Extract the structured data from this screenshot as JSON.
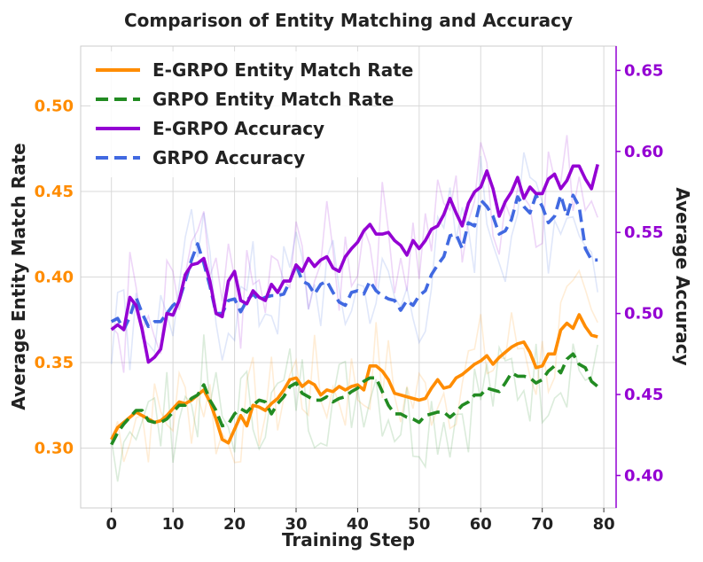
{
  "chart_data": {
    "type": "line",
    "title": "Comparison of Entity Matching and Accuracy",
    "xlabel": "Training Step",
    "ylabel_left": "Average Entity Match Rate",
    "ylabel_right": "Average Accuracy",
    "xlim": [
      -5,
      82
    ],
    "ylim_left": [
      0.265,
      0.535
    ],
    "ylim_right": [
      0.38,
      0.665
    ],
    "xticks": [
      "0",
      "10",
      "20",
      "30",
      "40",
      "50",
      "60",
      "70",
      "80"
    ],
    "yticks_left": [
      "0.30",
      "0.35",
      "0.40",
      "0.45",
      "0.50"
    ],
    "yticks_right": [
      "0.40",
      "0.45",
      "0.50",
      "0.55",
      "0.60",
      "0.65"
    ],
    "colors": {
      "egrpo_match": "#ff8c00",
      "grpo_match": "#228b22",
      "egrpo_acc": "#9400d3",
      "grpo_acc": "#4169e1",
      "left_axis_text": "#ff8c00",
      "right_axis_text": "#9400d3"
    },
    "series": [
      {
        "name": "E-GRPO Entity Match Rate",
        "axis": "left",
        "style": "solid",
        "x_start": 0,
        "values": [
          0.305,
          0.312,
          0.315,
          0.318,
          0.321,
          0.319,
          0.317,
          0.315,
          0.316,
          0.319,
          0.323,
          0.327,
          0.326,
          0.328,
          0.331,
          0.334,
          0.327,
          0.317,
          0.305,
          0.303,
          0.311,
          0.319,
          0.313,
          0.325,
          0.324,
          0.322,
          0.326,
          0.329,
          0.334,
          0.34,
          0.341,
          0.336,
          0.339,
          0.337,
          0.331,
          0.334,
          0.333,
          0.336,
          0.334,
          0.336,
          0.337,
          0.334,
          0.348,
          0.348,
          0.345,
          0.34,
          0.332,
          0.331,
          0.33,
          0.329,
          0.328,
          0.329,
          0.335,
          0.34,
          0.335,
          0.336,
          0.341,
          0.343,
          0.346,
          0.349,
          0.351,
          0.354,
          0.349,
          0.353,
          0.356,
          0.359,
          0.361,
          0.362,
          0.356,
          0.347,
          0.348,
          0.355,
          0.355,
          0.369,
          0.373,
          0.37,
          0.378,
          0.371,
          0.366,
          0.365
        ]
      },
      {
        "name": "GRPO Entity Match Rate",
        "axis": "left",
        "style": "dashed",
        "x_start": 0,
        "values": [
          0.302,
          0.309,
          0.314,
          0.318,
          0.322,
          0.322,
          0.316,
          0.315,
          0.315,
          0.317,
          0.321,
          0.325,
          0.325,
          0.329,
          0.331,
          0.337,
          0.328,
          0.322,
          0.313,
          0.314,
          0.32,
          0.323,
          0.321,
          0.325,
          0.328,
          0.327,
          0.32,
          0.326,
          0.33,
          0.336,
          0.338,
          0.332,
          0.33,
          0.328,
          0.328,
          0.33,
          0.327,
          0.329,
          0.33,
          0.333,
          0.335,
          0.339,
          0.341,
          0.341,
          0.333,
          0.325,
          0.32,
          0.32,
          0.318,
          0.317,
          0.315,
          0.319,
          0.32,
          0.321,
          0.321,
          0.318,
          0.321,
          0.325,
          0.327,
          0.331,
          0.331,
          0.335,
          0.334,
          0.333,
          0.338,
          0.344,
          0.342,
          0.342,
          0.341,
          0.338,
          0.34,
          0.345,
          0.348,
          0.344,
          0.352,
          0.355,
          0.349,
          0.347,
          0.339,
          0.336
        ]
      },
      {
        "name": "E-GRPO Accuracy",
        "axis": "right",
        "style": "solid",
        "x_start": 0,
        "values": [
          0.49,
          0.493,
          0.49,
          0.51,
          0.505,
          0.49,
          0.47,
          0.473,
          0.478,
          0.5,
          0.499,
          0.508,
          0.524,
          0.53,
          0.531,
          0.534,
          0.52,
          0.5,
          0.498,
          0.52,
          0.526,
          0.508,
          0.506,
          0.514,
          0.51,
          0.508,
          0.518,
          0.513,
          0.52,
          0.52,
          0.53,
          0.526,
          0.534,
          0.529,
          0.533,
          0.535,
          0.528,
          0.526,
          0.535,
          0.54,
          0.544,
          0.551,
          0.555,
          0.549,
          0.549,
          0.55,
          0.545,
          0.542,
          0.536,
          0.545,
          0.54,
          0.545,
          0.552,
          0.554,
          0.561,
          0.571,
          0.562,
          0.554,
          0.568,
          0.575,
          0.578,
          0.588,
          0.577,
          0.56,
          0.569,
          0.575,
          0.584,
          0.571,
          0.578,
          0.574,
          0.574,
          0.583,
          0.586,
          0.577,
          0.582,
          0.591,
          0.591,
          0.583,
          0.577,
          0.592
        ]
      },
      {
        "name": "GRPO Accuracy",
        "axis": "right",
        "style": "dashed",
        "x_start": 0,
        "values": [
          0.495,
          0.497,
          0.49,
          0.498,
          0.51,
          0.5,
          0.492,
          0.495,
          0.495,
          0.5,
          0.505,
          0.508,
          0.52,
          0.533,
          0.543,
          0.531,
          0.517,
          0.5,
          0.5,
          0.508,
          0.509,
          0.501,
          0.508,
          0.512,
          0.508,
          0.51,
          0.511,
          0.511,
          0.512,
          0.52,
          0.53,
          0.52,
          0.518,
          0.512,
          0.518,
          0.52,
          0.513,
          0.507,
          0.505,
          0.513,
          0.514,
          0.512,
          0.52,
          0.514,
          0.511,
          0.509,
          0.508,
          0.502,
          0.508,
          0.505,
          0.511,
          0.514,
          0.524,
          0.53,
          0.535,
          0.548,
          0.549,
          0.54,
          0.556,
          0.554,
          0.57,
          0.566,
          0.56,
          0.549,
          0.551,
          0.558,
          0.572,
          0.566,
          0.562,
          0.573,
          0.566,
          0.556,
          0.56,
          0.573,
          0.56,
          0.573,
          0.566,
          0.54,
          0.533,
          0.533
        ]
      }
    ]
  },
  "legend": [
    {
      "label": "E-GRPO Entity Match Rate",
      "color": "#ff8c00",
      "style": "solid"
    },
    {
      "label": "GRPO Entity Match Rate",
      "color": "#228b22",
      "style": "dashed"
    },
    {
      "label": "E-GRPO Accuracy",
      "color": "#9400d3",
      "style": "solid"
    },
    {
      "label": "GRPO Accuracy",
      "color": "#4169e1",
      "style": "dashed"
    }
  ]
}
